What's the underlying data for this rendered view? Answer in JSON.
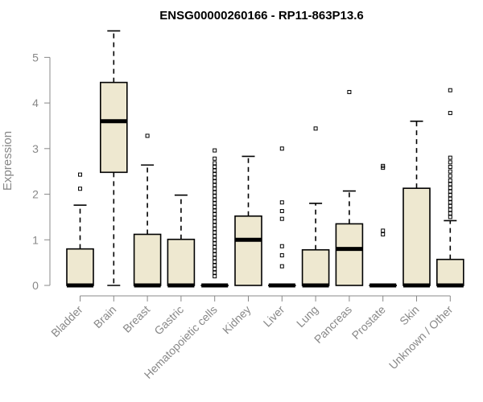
{
  "chart_data": {
    "type": "box",
    "title": "ENSG00000260166 - RP11-863P13.6",
    "xlabel": "",
    "ylabel": "Expression",
    "ylim": [
      0,
      5.5
    ],
    "yticks": [
      0,
      1,
      2,
      3,
      4,
      5
    ],
    "colors": {
      "box_fill": "#EEE8D0",
      "axis": "#888888"
    },
    "categories": [
      "Bladder",
      "Brain",
      "Breast",
      "Gastric",
      "Hematopoietic cells",
      "Kidney",
      "Liver",
      "Lung",
      "Pancreas",
      "Prostate",
      "Skin",
      "Unknown / Other"
    ],
    "boxes": [
      {
        "category": "Bladder",
        "q1": 0,
        "median": 0,
        "q3": 0.8,
        "whisker_low": 0,
        "whisker_high": 1.76,
        "outliers": [
          2.12,
          2.43
        ]
      },
      {
        "category": "Brain",
        "q1": 2.48,
        "median": 3.6,
        "q3": 4.45,
        "whisker_low": 0,
        "whisker_high": 5.58,
        "outliers": []
      },
      {
        "category": "Breast",
        "q1": 0,
        "median": 0,
        "q3": 1.12,
        "whisker_low": 0,
        "whisker_high": 2.64,
        "outliers": [
          3.28
        ]
      },
      {
        "category": "Gastric",
        "q1": 0,
        "median": 0,
        "q3": 1.01,
        "whisker_low": 0,
        "whisker_high": 1.98,
        "outliers": []
      },
      {
        "category": "Hematopoietic cells",
        "q1": 0,
        "median": 0,
        "q3": 0,
        "whisker_low": 0,
        "whisker_high": 0,
        "outliers": [
          0.2,
          0.28,
          0.36,
          0.44,
          0.52,
          0.6,
          0.68,
          0.76,
          0.84,
          0.92,
          1.0,
          1.08,
          1.16,
          1.24,
          1.32,
          1.4,
          1.48,
          1.56,
          1.64,
          1.72,
          1.8,
          1.88,
          1.96,
          2.04,
          2.12,
          2.2,
          2.28,
          2.36,
          2.44,
          2.52,
          2.6,
          2.68,
          2.78,
          2.96
        ]
      },
      {
        "category": "Kidney",
        "q1": 0,
        "median": 1.0,
        "q3": 1.52,
        "whisker_low": 0,
        "whisker_high": 2.83,
        "outliers": []
      },
      {
        "category": "Liver",
        "q1": 0,
        "median": 0,
        "q3": 0,
        "whisker_low": 0,
        "whisker_high": 0,
        "outliers": [
          0.42,
          0.66,
          0.86,
          1.46,
          1.63,
          1.82,
          3.0
        ]
      },
      {
        "category": "Lung",
        "q1": 0,
        "median": 0,
        "q3": 0.78,
        "whisker_low": 0,
        "whisker_high": 1.8,
        "outliers": [
          3.44
        ]
      },
      {
        "category": "Pancreas",
        "q1": 0,
        "median": 0.8,
        "q3": 1.35,
        "whisker_low": 0,
        "whisker_high": 2.07,
        "outliers": [
          4.24
        ]
      },
      {
        "category": "Prostate",
        "q1": 0,
        "median": 0,
        "q3": 0,
        "whisker_low": 0,
        "whisker_high": 0,
        "outliers": [
          1.12,
          1.2,
          2.58,
          2.62
        ]
      },
      {
        "category": "Skin",
        "q1": 0,
        "median": 0,
        "q3": 2.13,
        "whisker_low": 0,
        "whisker_high": 3.6,
        "outliers": []
      },
      {
        "category": "Unknown / Other",
        "q1": 0,
        "median": 0,
        "q3": 0.57,
        "whisker_low": 0,
        "whisker_high": 1.42,
        "outliers": [
          1.5,
          1.58,
          1.66,
          1.74,
          1.82,
          1.9,
          1.98,
          2.06,
          2.14,
          2.22,
          2.3,
          2.4,
          2.5,
          2.6,
          2.7,
          2.8,
          3.78,
          4.28
        ]
      }
    ]
  }
}
